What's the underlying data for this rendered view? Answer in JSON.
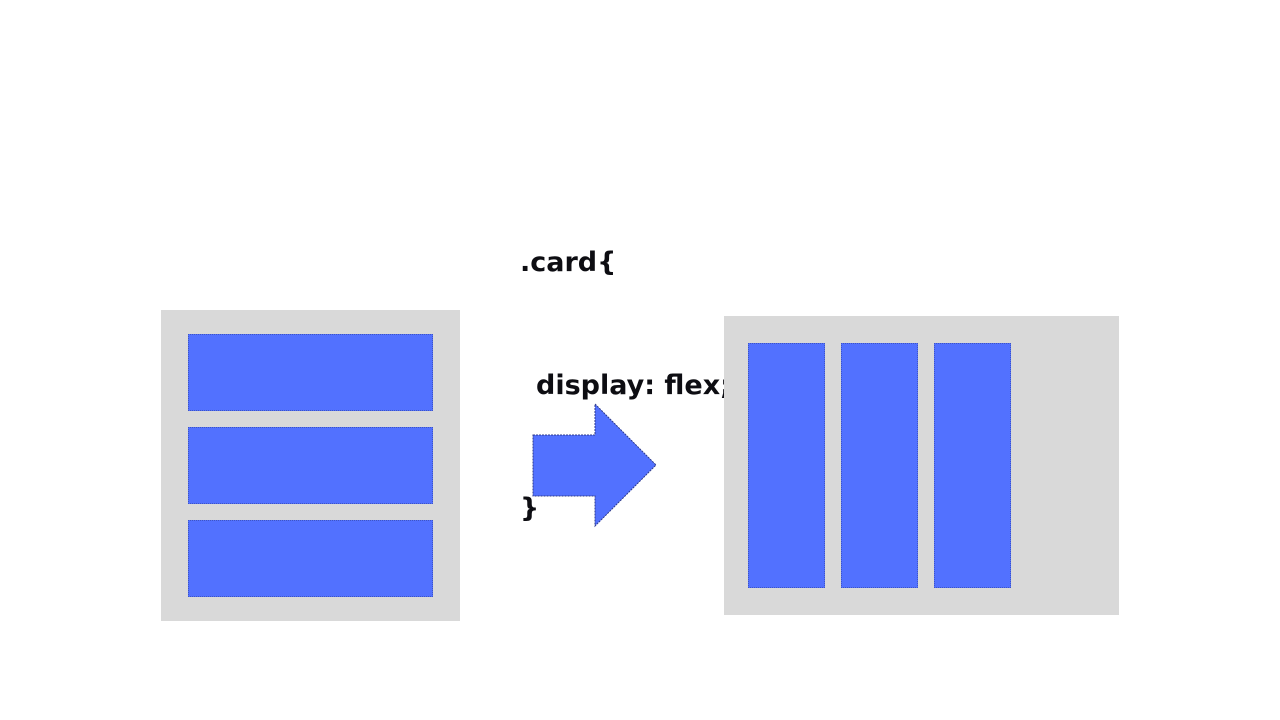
{
  "code": {
    "line1": ".card{",
    "line2": "display: flex;",
    "line3": "}"
  },
  "colors": {
    "container": "#d9d9d9",
    "item": "#5271ff",
    "text": "#0d0d12",
    "background": "#ffffff"
  },
  "diagram": {
    "before_items": 3,
    "after_items": 3,
    "arrow_icon": "right-arrow-icon"
  }
}
